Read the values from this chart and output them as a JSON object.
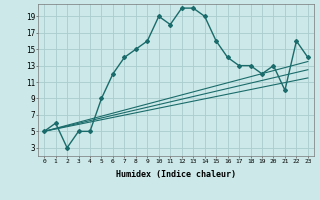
{
  "title": "",
  "xlabel": "Humidex (Indice chaleur)",
  "ylabel": "",
  "bg_color": "#cce8e8",
  "grid_color": "#aacccc",
  "line_color": "#1a6b6b",
  "curve_x": [
    0,
    1,
    2,
    3,
    4,
    5,
    6,
    7,
    8,
    9,
    10,
    11,
    12,
    13,
    14,
    15,
    16,
    17,
    18,
    19,
    20,
    21,
    22,
    23
  ],
  "curve_y": [
    5,
    6,
    3,
    5,
    5,
    9,
    12,
    14,
    15,
    16,
    19,
    18,
    20,
    20,
    19,
    16,
    14,
    13,
    13,
    12,
    13,
    10,
    16,
    14
  ],
  "line1_x": [
    0,
    23
  ],
  "line1_y": [
    5.0,
    12.5
  ],
  "line2_x": [
    0,
    23
  ],
  "line2_y": [
    5.0,
    13.5
  ],
  "line3_x": [
    0,
    23
  ],
  "line3_y": [
    5.0,
    11.5
  ],
  "xlim": [
    -0.5,
    23.5
  ],
  "ylim": [
    2.0,
    20.5
  ],
  "xticks": [
    0,
    1,
    2,
    3,
    4,
    5,
    6,
    7,
    8,
    9,
    10,
    11,
    12,
    13,
    14,
    15,
    16,
    17,
    18,
    19,
    20,
    21,
    22,
    23
  ],
  "yticks": [
    3,
    5,
    7,
    9,
    11,
    13,
    15,
    17,
    19
  ]
}
